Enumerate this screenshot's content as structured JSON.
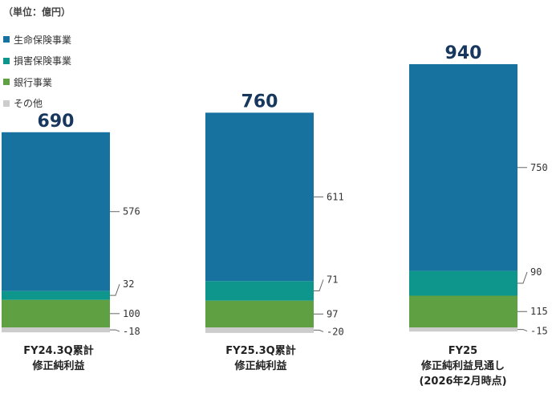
{
  "unit_label": "（単位：億円）",
  "legend": [
    {
      "label": "生命保険事業",
      "color": "#1872a0"
    },
    {
      "label": "損害保険事業",
      "color": "#0e968c"
    },
    {
      "label": "銀行事業",
      "color": "#5fa043"
    },
    {
      "label": "その他",
      "color": "#cccccc"
    }
  ],
  "chart_data": {
    "type": "bar",
    "stacked": true,
    "categories": [
      [
        "FY24.3Q累計",
        "修正純利益"
      ],
      [
        "FY25.3Q累計",
        "修正純利益"
      ],
      [
        "FY25",
        "修正純利益見通し",
        "(2026年2月時点)"
      ]
    ],
    "totals": [
      690,
      760,
      940
    ],
    "series": [
      {
        "name": "その他",
        "color": "#cccccc",
        "values": [
          -18,
          -20,
          -15
        ]
      },
      {
        "name": "銀行事業",
        "color": "#5fa043",
        "values": [
          100,
          97,
          115
        ]
      },
      {
        "name": "損害保険事業",
        "color": "#0e968c",
        "values": [
          32,
          71,
          90
        ]
      },
      {
        "name": "生命保険事業",
        "color": "#1872a0",
        "values": [
          576,
          611,
          750
        ]
      }
    ]
  }
}
